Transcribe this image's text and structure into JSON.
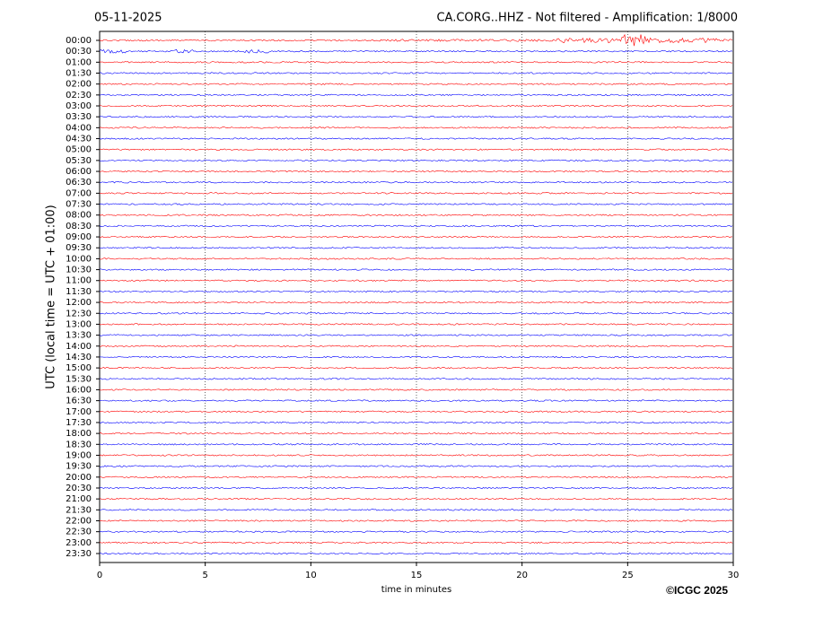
{
  "chart_data": {
    "type": "helicorder",
    "date": "05-11-2025",
    "title": "CA.CORG..HHZ - Not filtered - Amplification: 1/8000",
    "xlabel": "time in minutes",
    "ylabel": "UTC (local time = UTC + 01:00)",
    "categories": [
      "00:00",
      "00:30",
      "01:00",
      "01:30",
      "02:00",
      "02:30",
      "03:00",
      "03:30",
      "04:00",
      "04:30",
      "05:00",
      "05:30",
      "06:00",
      "06:30",
      "07:00",
      "07:30",
      "08:00",
      "08:30",
      "09:00",
      "09:30",
      "10:00",
      "10:30",
      "11:00",
      "11:30",
      "12:00",
      "12:30",
      "13:00",
      "13:30",
      "14:00",
      "14:30",
      "15:00",
      "15:30",
      "16:00",
      "16:30",
      "17:00",
      "17:30",
      "18:00",
      "18:30",
      "19:00",
      "19:30",
      "20:00",
      "20:30",
      "21:00",
      "21:30",
      "22:00",
      "22:30",
      "23:00",
      "23:30"
    ],
    "trace_colors": [
      "#ff0000",
      "#0000ff"
    ],
    "xlim": [
      0,
      30
    ],
    "xticks": [
      0,
      5,
      10,
      15,
      20,
      25,
      30
    ],
    "grid": true,
    "copyright": "©ICGC 2025"
  }
}
